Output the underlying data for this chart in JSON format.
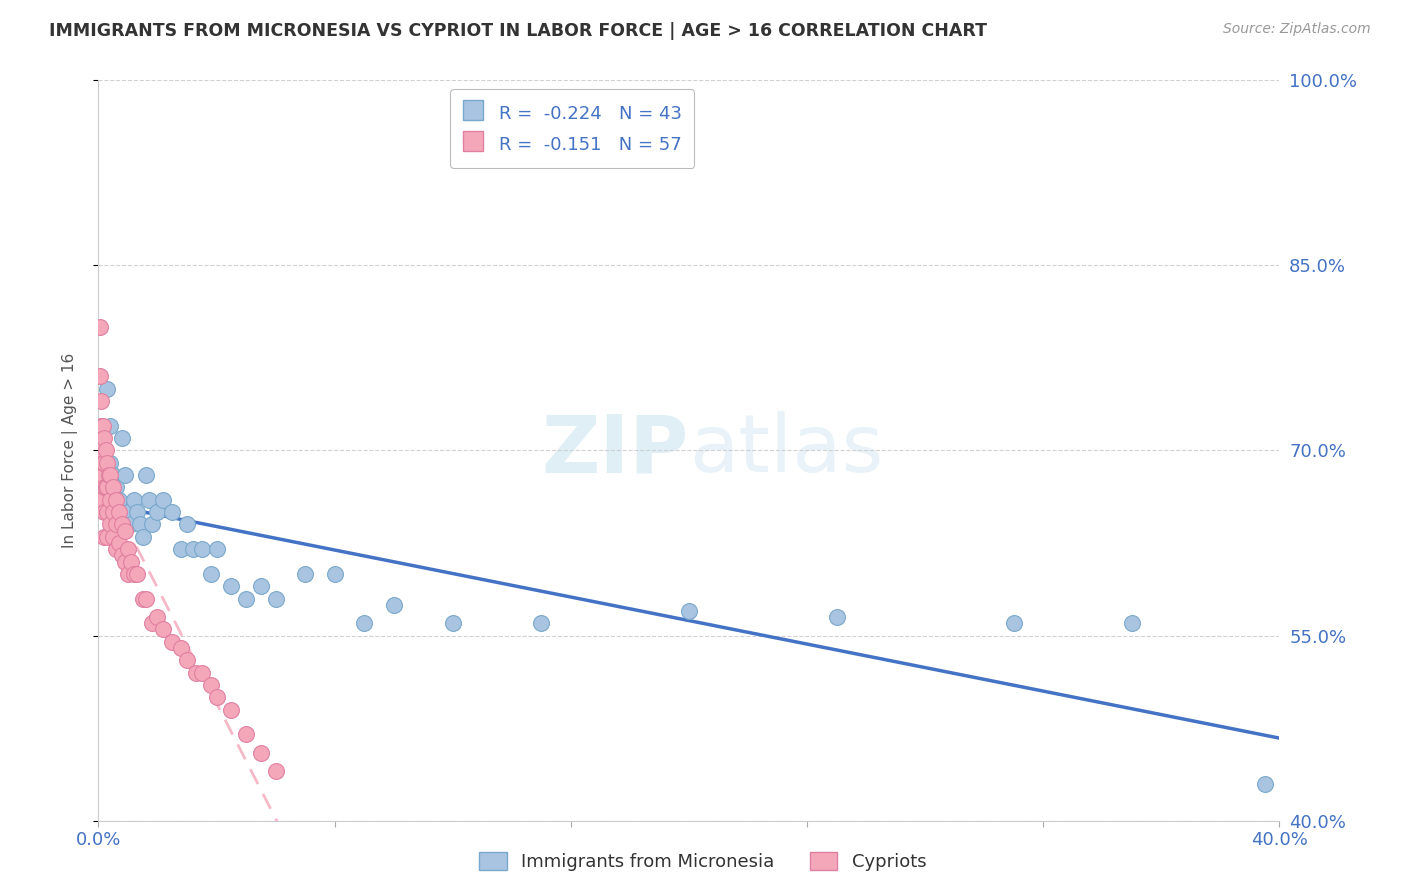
{
  "title": "IMMIGRANTS FROM MICRONESIA VS CYPRIOT IN LABOR FORCE | AGE > 16 CORRELATION CHART",
  "source": "Source: ZipAtlas.com",
  "ylabel": "In Labor Force | Age > 16",
  "x_min": 0.0,
  "x_max": 0.4,
  "y_min": 0.4,
  "y_max": 1.0,
  "y_ticks": [
    0.4,
    0.55,
    0.7,
    0.85,
    1.0
  ],
  "y_tick_labels": [
    "40.0%",
    "55.0%",
    "70.0%",
    "85.0%",
    "100.0%"
  ],
  "micronesia_color": "#a8c4e0",
  "micronesia_edge": "#7aa8cc",
  "cypriot_color": "#f4a7b9",
  "cypriot_edge": "#e080a0",
  "micronesia_R": -0.224,
  "micronesia_N": 43,
  "cypriot_R": -0.151,
  "cypriot_N": 57,
  "trend_blue_color": "#4472c4",
  "trend_pink_color": "#f4a7b9",
  "background_color": "#ffffff",
  "grid_color": "#cccccc",
  "watermark_zip": "ZIP",
  "watermark_atlas": "atlas",
  "title_color": "#333333",
  "axis_color": "#4472c4",
  "ylabel_color": "#555555",
  "micronesia_x": [
    0.001,
    0.002,
    0.003,
    0.004,
    0.004,
    0.005,
    0.006,
    0.007,
    0.008,
    0.009,
    0.01,
    0.011,
    0.012,
    0.013,
    0.014,
    0.015,
    0.016,
    0.017,
    0.018,
    0.02,
    0.022,
    0.025,
    0.028,
    0.03,
    0.032,
    0.035,
    0.038,
    0.04,
    0.045,
    0.05,
    0.055,
    0.06,
    0.07,
    0.08,
    0.09,
    0.1,
    0.12,
    0.15,
    0.2,
    0.25,
    0.31,
    0.35,
    0.395
  ],
  "micronesia_y": [
    0.68,
    0.7,
    0.75,
    0.72,
    0.69,
    0.68,
    0.67,
    0.66,
    0.71,
    0.68,
    0.65,
    0.64,
    0.66,
    0.65,
    0.64,
    0.63,
    0.68,
    0.66,
    0.64,
    0.65,
    0.66,
    0.65,
    0.62,
    0.64,
    0.62,
    0.62,
    0.6,
    0.62,
    0.59,
    0.58,
    0.59,
    0.58,
    0.6,
    0.6,
    0.56,
    0.575,
    0.56,
    0.56,
    0.57,
    0.565,
    0.56,
    0.56,
    0.43
  ],
  "cypriot_x": [
    0.0005,
    0.0005,
    0.001,
    0.001,
    0.001,
    0.001,
    0.001,
    0.0015,
    0.0015,
    0.002,
    0.002,
    0.002,
    0.002,
    0.002,
    0.0025,
    0.0025,
    0.003,
    0.003,
    0.003,
    0.003,
    0.0035,
    0.004,
    0.004,
    0.004,
    0.005,
    0.005,
    0.005,
    0.006,
    0.006,
    0.006,
    0.007,
    0.007,
    0.008,
    0.008,
    0.009,
    0.009,
    0.01,
    0.01,
    0.011,
    0.012,
    0.013,
    0.015,
    0.016,
    0.018,
    0.02,
    0.022,
    0.025,
    0.028,
    0.03,
    0.033,
    0.035,
    0.038,
    0.04,
    0.045,
    0.05,
    0.055,
    0.06
  ],
  "cypriot_y": [
    0.8,
    0.76,
    0.74,
    0.72,
    0.7,
    0.68,
    0.66,
    0.72,
    0.69,
    0.71,
    0.69,
    0.67,
    0.65,
    0.63,
    0.7,
    0.67,
    0.69,
    0.67,
    0.65,
    0.63,
    0.68,
    0.68,
    0.66,
    0.64,
    0.67,
    0.65,
    0.63,
    0.66,
    0.64,
    0.62,
    0.65,
    0.625,
    0.64,
    0.615,
    0.635,
    0.61,
    0.62,
    0.6,
    0.61,
    0.6,
    0.6,
    0.58,
    0.58,
    0.56,
    0.565,
    0.555,
    0.545,
    0.54,
    0.53,
    0.52,
    0.52,
    0.51,
    0.5,
    0.49,
    0.47,
    0.455,
    0.44
  ]
}
